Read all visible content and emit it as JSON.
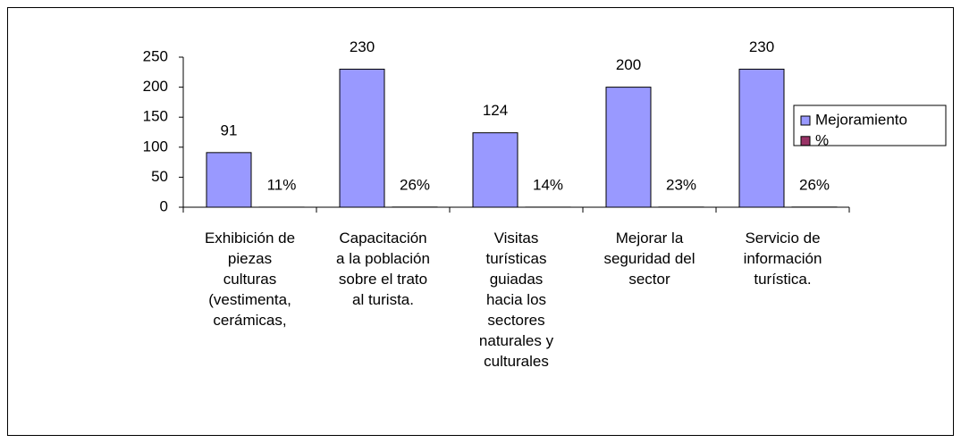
{
  "chart_data": {
    "type": "bar",
    "categories": [
      "Exhibición de\npiezas\nculturas\n(vestimenta,\ncerámicas,",
      "Capacitación\na la población\nsobre el trato\nal turista.",
      "Visitas\nturísticas\nguiadas\nhacia los\nsectores\nnaturales y\nculturales",
      "Mejorar la\nseguridad del\nsector",
      "Servicio de\ninformación\nturística."
    ],
    "series": [
      {
        "name": "Mejoramiento",
        "color": "#9999ff",
        "values": [
          91,
          230,
          124,
          200,
          230
        ]
      },
      {
        "name": "%",
        "color": "#993366",
        "values": [
          0.11,
          0.26,
          0.14,
          0.23,
          0.26
        ],
        "value_labels": [
          "11%",
          "26%",
          "14%",
          "23%",
          "26%"
        ]
      }
    ],
    "ylim": [
      0,
      250
    ],
    "yticks": [
      0,
      50,
      100,
      150,
      200,
      250
    ],
    "grid": false,
    "legend": "right"
  }
}
